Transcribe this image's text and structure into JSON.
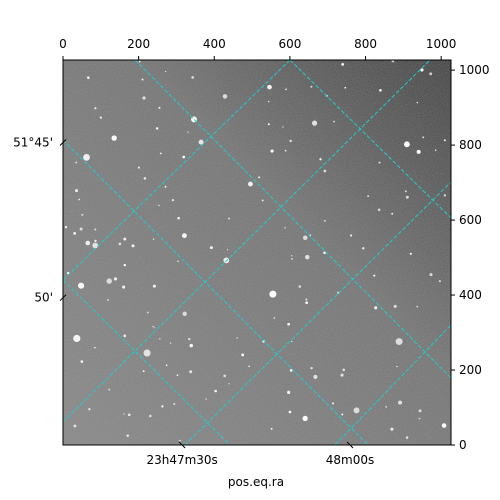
{
  "chart_data": {
    "type": "image",
    "xlabel": "pos.eq.ra",
    "xlim": [
      0,
      1026
    ],
    "ylim": [
      0,
      1027
    ],
    "xticks": [
      0,
      200,
      400,
      600,
      800,
      1000
    ],
    "yticks": [
      0,
      200,
      400,
      600,
      800,
      1000
    ],
    "bottom_ticks": [
      {
        "value": 315,
        "label": "23h47m30s"
      },
      {
        "value": 759,
        "label": "48m00s"
      }
    ],
    "left_ticks": [
      {
        "value": 807,
        "label": "51°45'"
      },
      {
        "value": 393,
        "label": "50'"
      }
    ],
    "grid_color": "#22cccc"
  }
}
